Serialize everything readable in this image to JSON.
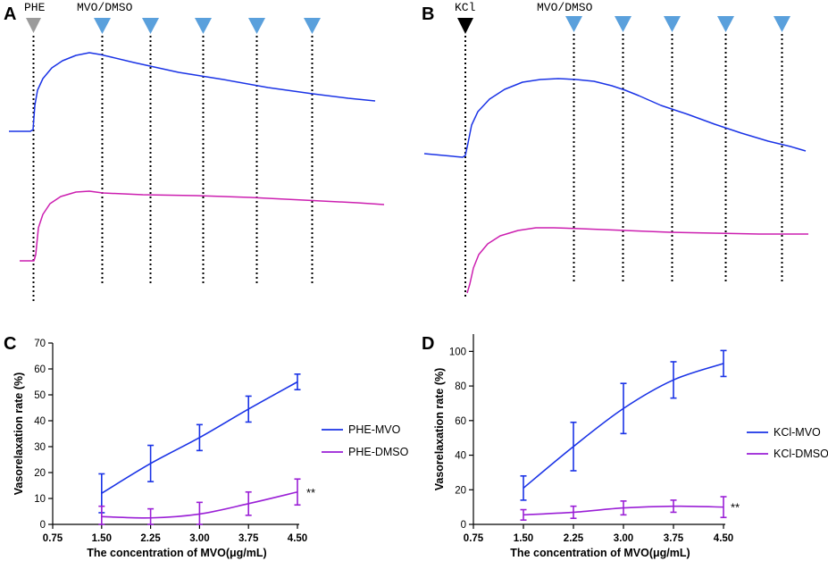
{
  "colors": {
    "mvo_blue": "#1a33e6",
    "dmso_magenta": "#cc1fb0",
    "dmso_purple": "#9a1fd6",
    "arrow_blue": "#5aa0dc",
    "arrow_gray": "#9b9b9b",
    "arrow_black": "#000000"
  },
  "panels": {
    "A": {
      "letter": "A",
      "stimulus_label": "PHE",
      "treatment_label": "MVO/DMSO"
    },
    "B": {
      "letter": "B",
      "stimulus_label": "KCl",
      "treatment_label": "MVO/DMSO"
    },
    "C": {
      "letter": "C"
    },
    "D": {
      "letter": "D"
    }
  },
  "chart_data": [
    {
      "panel": "C",
      "type": "line",
      "x": [
        1.5,
        2.25,
        3.0,
        3.75,
        4.5
      ],
      "xlim": [
        0.75,
        4.5
      ],
      "xticks": [
        "0.75",
        "1.50",
        "2.25",
        "3.00",
        "3.75",
        "4.50"
      ],
      "ylim": [
        0,
        70
      ],
      "yticks": [
        0,
        10,
        20,
        30,
        40,
        50,
        60,
        70
      ],
      "xlabel": "The concentration of MVO(μg/mL)",
      "ylabel": "Vasorelaxation rate (%)",
      "series": [
        {
          "name": "PHE-MVO",
          "color": "#1a33e6",
          "values": [
            12,
            23.5,
            33.5,
            44.5,
            55
          ],
          "errors": [
            7.5,
            7,
            5,
            5,
            3
          ]
        },
        {
          "name": "PHE-DMSO",
          "color": "#9a1fd6",
          "values": [
            3,
            2.5,
            4,
            8,
            12.5
          ],
          "errors": [
            4,
            3.5,
            4.5,
            4.5,
            5
          ]
        }
      ],
      "annotation": "**",
      "legend_position": "right"
    },
    {
      "panel": "D",
      "type": "line",
      "x": [
        1.5,
        2.25,
        3.0,
        3.75,
        4.5
      ],
      "xlim": [
        0.75,
        4.5
      ],
      "xticks": [
        "0.75",
        "1.50",
        "2.25",
        "3.00",
        "3.75",
        "4.50"
      ],
      "ylim": [
        0,
        110
      ],
      "yticks": [
        0,
        20,
        40,
        60,
        80,
        100
      ],
      "xlabel": "The concentration of MVO(μg/mL)",
      "ylabel": "Vasorelaxation rate (%)",
      "series": [
        {
          "name": "KCl-MVO",
          "color": "#1a33e6",
          "values": [
            21,
            45,
            67,
            83.5,
            93
          ],
          "errors": [
            7,
            14,
            14.5,
            10.5,
            7.5
          ]
        },
        {
          "name": "KCl-DMSO",
          "color": "#9a1fd6",
          "values": [
            5.5,
            7,
            9.5,
            10.5,
            10
          ],
          "errors": [
            3,
            3.5,
            4,
            3.5,
            6
          ]
        }
      ],
      "annotation": "**",
      "legend_position": "right"
    }
  ]
}
